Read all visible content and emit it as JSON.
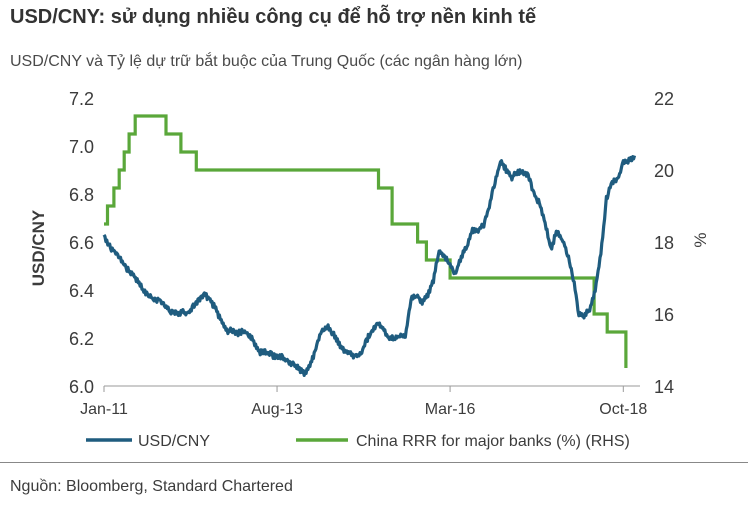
{
  "header": {
    "title": "USD/CNY: sử dụng nhiều công cụ để hỗ trợ nền kinh tế",
    "subtitle": "USD/CNY và Tỷ lệ dự trữ bắt buộc của Trung Quốc (các ngân hàng lớn)"
  },
  "footer": {
    "source": "Nguồn: Bloomberg, Standard Chartered"
  },
  "chart_data": {
    "type": "line",
    "title": "USD/CNY và Tỷ lệ dự trữ bắt buộc của Trung Quốc (các ngân hàng lớn)",
    "xlabel": "",
    "ylabel": "USD/CNY",
    "y2label": "%",
    "xlim": [
      "2011-01-01",
      "2018-12-31"
    ],
    "ylim": [
      6.0,
      7.2
    ],
    "y2lim": [
      14,
      22
    ],
    "yticks": [
      6.0,
      6.2,
      6.4,
      6.6,
      6.8,
      7.0,
      7.2
    ],
    "y2ticks": [
      14,
      16,
      18,
      20,
      22
    ],
    "xticks": [
      {
        "label": "Jan-11",
        "date": "2011-01-01"
      },
      {
        "label": "Aug-13",
        "date": "2013-08-01"
      },
      {
        "label": "Mar-16",
        "date": "2016-03-01"
      },
      {
        "label": "Oct-18",
        "date": "2018-10-01"
      }
    ],
    "grid": false,
    "legend_position": "bottom",
    "series": [
      {
        "name": "USD/CNY",
        "axis": "left",
        "color": "#1f5c7f",
        "points": [
          [
            "2011-01-01",
            6.63
          ],
          [
            "2011-02-01",
            6.58
          ],
          [
            "2011-03-01",
            6.56
          ],
          [
            "2011-04-01",
            6.53
          ],
          [
            "2011-05-01",
            6.49
          ],
          [
            "2011-06-01",
            6.47
          ],
          [
            "2011-07-01",
            6.44
          ],
          [
            "2011-08-01",
            6.4
          ],
          [
            "2011-09-01",
            6.38
          ],
          [
            "2011-10-01",
            6.36
          ],
          [
            "2011-11-01",
            6.36
          ],
          [
            "2011-12-01",
            6.33
          ],
          [
            "2012-01-01",
            6.31
          ],
          [
            "2012-02-01",
            6.3
          ],
          [
            "2012-03-01",
            6.31
          ],
          [
            "2012-04-01",
            6.3
          ],
          [
            "2012-05-01",
            6.33
          ],
          [
            "2012-06-01",
            6.36
          ],
          [
            "2012-07-01",
            6.38
          ],
          [
            "2012-08-01",
            6.36
          ],
          [
            "2012-09-01",
            6.32
          ],
          [
            "2012-10-01",
            6.27
          ],
          [
            "2012-11-01",
            6.23
          ],
          [
            "2012-12-01",
            6.23
          ],
          [
            "2013-01-01",
            6.22
          ],
          [
            "2013-02-01",
            6.23
          ],
          [
            "2013-03-01",
            6.21
          ],
          [
            "2013-04-01",
            6.18
          ],
          [
            "2013-05-01",
            6.14
          ],
          [
            "2013-06-01",
            6.14
          ],
          [
            "2013-07-01",
            6.13
          ],
          [
            "2013-08-01",
            6.12
          ],
          [
            "2013-09-01",
            6.12
          ],
          [
            "2013-10-01",
            6.1
          ],
          [
            "2013-11-01",
            6.09
          ],
          [
            "2013-12-01",
            6.07
          ],
          [
            "2014-01-01",
            6.05
          ],
          [
            "2014-02-01",
            6.09
          ],
          [
            "2014-03-01",
            6.16
          ],
          [
            "2014-04-01",
            6.23
          ],
          [
            "2014-05-01",
            6.25
          ],
          [
            "2014-06-01",
            6.22
          ],
          [
            "2014-07-01",
            6.18
          ],
          [
            "2014-08-01",
            6.15
          ],
          [
            "2014-09-01",
            6.14
          ],
          [
            "2014-10-01",
            6.12
          ],
          [
            "2014-11-01",
            6.13
          ],
          [
            "2014-12-01",
            6.19
          ],
          [
            "2015-01-01",
            6.23
          ],
          [
            "2015-02-01",
            6.26
          ],
          [
            "2015-03-01",
            6.24
          ],
          [
            "2015-04-01",
            6.2
          ],
          [
            "2015-05-01",
            6.2
          ],
          [
            "2015-06-01",
            6.21
          ],
          [
            "2015-07-01",
            6.21
          ],
          [
            "2015-08-01",
            6.36
          ],
          [
            "2015-09-01",
            6.38
          ],
          [
            "2015-10-01",
            6.35
          ],
          [
            "2015-11-01",
            6.38
          ],
          [
            "2015-12-01",
            6.44
          ],
          [
            "2016-01-01",
            6.56
          ],
          [
            "2016-02-01",
            6.54
          ],
          [
            "2016-03-01",
            6.5
          ],
          [
            "2016-04-01",
            6.47
          ],
          [
            "2016-05-01",
            6.54
          ],
          [
            "2016-06-01",
            6.58
          ],
          [
            "2016-07-01",
            6.65
          ],
          [
            "2016-08-01",
            6.65
          ],
          [
            "2016-09-01",
            6.67
          ],
          [
            "2016-10-01",
            6.75
          ],
          [
            "2016-11-01",
            6.85
          ],
          [
            "2016-12-01",
            6.94
          ],
          [
            "2017-01-01",
            6.9
          ],
          [
            "2017-02-01",
            6.87
          ],
          [
            "2017-03-01",
            6.89
          ],
          [
            "2017-04-01",
            6.89
          ],
          [
            "2017-05-01",
            6.88
          ],
          [
            "2017-06-01",
            6.8
          ],
          [
            "2017-07-01",
            6.76
          ],
          [
            "2017-08-01",
            6.68
          ],
          [
            "2017-09-01",
            6.57
          ],
          [
            "2017-10-01",
            6.64
          ],
          [
            "2017-11-01",
            6.62
          ],
          [
            "2017-12-01",
            6.55
          ],
          [
            "2018-01-01",
            6.45
          ],
          [
            "2018-02-01",
            6.3
          ],
          [
            "2018-03-01",
            6.29
          ],
          [
            "2018-04-01",
            6.32
          ],
          [
            "2018-05-01",
            6.4
          ],
          [
            "2018-06-01",
            6.55
          ],
          [
            "2018-07-01",
            6.78
          ],
          [
            "2018-08-01",
            6.85
          ],
          [
            "2018-09-01",
            6.86
          ],
          [
            "2018-10-01",
            6.93
          ],
          [
            "2018-11-01",
            6.94
          ],
          [
            "2018-12-01",
            6.96
          ]
        ]
      },
      {
        "name": "China RRR for major banks (%) (RHS)",
        "axis": "right",
        "color": "#5aa73a",
        "points": [
          [
            "2011-01-01",
            18.5
          ],
          [
            "2011-01-20",
            19.0
          ],
          [
            "2011-02-24",
            19.5
          ],
          [
            "2011-03-25",
            20.0
          ],
          [
            "2011-04-21",
            20.5
          ],
          [
            "2011-05-18",
            21.0
          ],
          [
            "2011-06-20",
            21.5
          ],
          [
            "2011-12-05",
            21.0
          ],
          [
            "2012-02-24",
            20.5
          ],
          [
            "2012-05-18",
            20.0
          ],
          [
            "2015-02-05",
            19.5
          ],
          [
            "2015-04-20",
            18.5
          ],
          [
            "2015-09-06",
            18.0
          ],
          [
            "2015-10-24",
            17.5
          ],
          [
            "2016-03-01",
            17.0
          ],
          [
            "2018-04-25",
            16.0
          ],
          [
            "2018-07-05",
            15.5
          ],
          [
            "2018-10-15",
            14.5
          ]
        ]
      }
    ]
  }
}
